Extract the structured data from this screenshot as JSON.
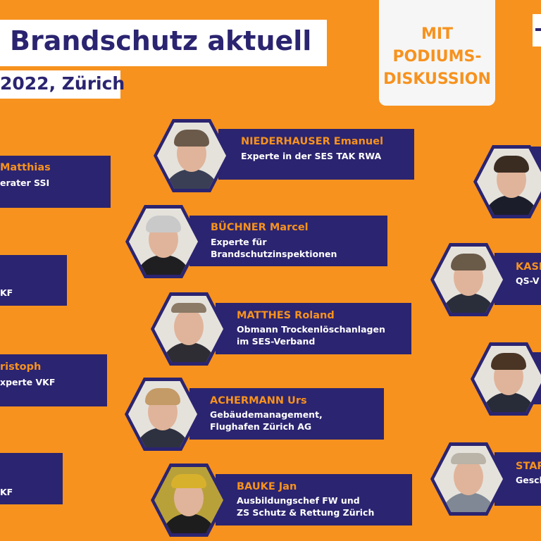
{
  "header": {
    "title": "Brandschutz aktuell",
    "subtitle": "2022, Zürich"
  },
  "badge": {
    "lines": [
      "MIT",
      "PODIUMS-",
      "DISKUSSION"
    ]
  },
  "speakers_left": [
    {
      "name": "Matthias",
      "role": "erater SSI"
    },
    {
      "name": "",
      "role": "KF"
    },
    {
      "name": "ristoph",
      "role": "xperte VKF"
    },
    {
      "name": "",
      "role": "KF"
    }
  ],
  "speakers_middle": [
    {
      "name": "NIEDERHAUSER Emanuel",
      "role_lines": [
        "Experte in der SES TAK RWA"
      ],
      "photo": "portrait-photo"
    },
    {
      "name": "BÜCHNER Marcel",
      "role_lines": [
        "Experte für",
        "Brandschutzinspektionen"
      ],
      "photo": "portrait-photo"
    },
    {
      "name": "MATTHES Roland",
      "role_lines": [
        "Obmann Trockenlöschanlagen",
        "im SES-Verband"
      ],
      "photo": "portrait-photo"
    },
    {
      "name": "ACHERMANN Urs",
      "role_lines": [
        "Gebäudemanagement,",
        "Flughafen Zürich AG"
      ],
      "photo": "portrait-photo"
    },
    {
      "name": "BAUKE Jan",
      "role_lines": [
        "Ausbildungschef FW und",
        "ZS Schutz & Rettung Zürich"
      ],
      "photo": "portrait-photo"
    }
  ],
  "speakers_right": [
    {
      "name": "",
      "role": ""
    },
    {
      "name": "KASE",
      "role": "QS-V"
    },
    {
      "name": "",
      "role": ""
    },
    {
      "name": "STAR",
      "role": "Gesch"
    }
  ],
  "colors": {
    "background": "#f7921e",
    "navy": "#2b2470",
    "accent": "#f7921e",
    "white": "#ffffff"
  }
}
